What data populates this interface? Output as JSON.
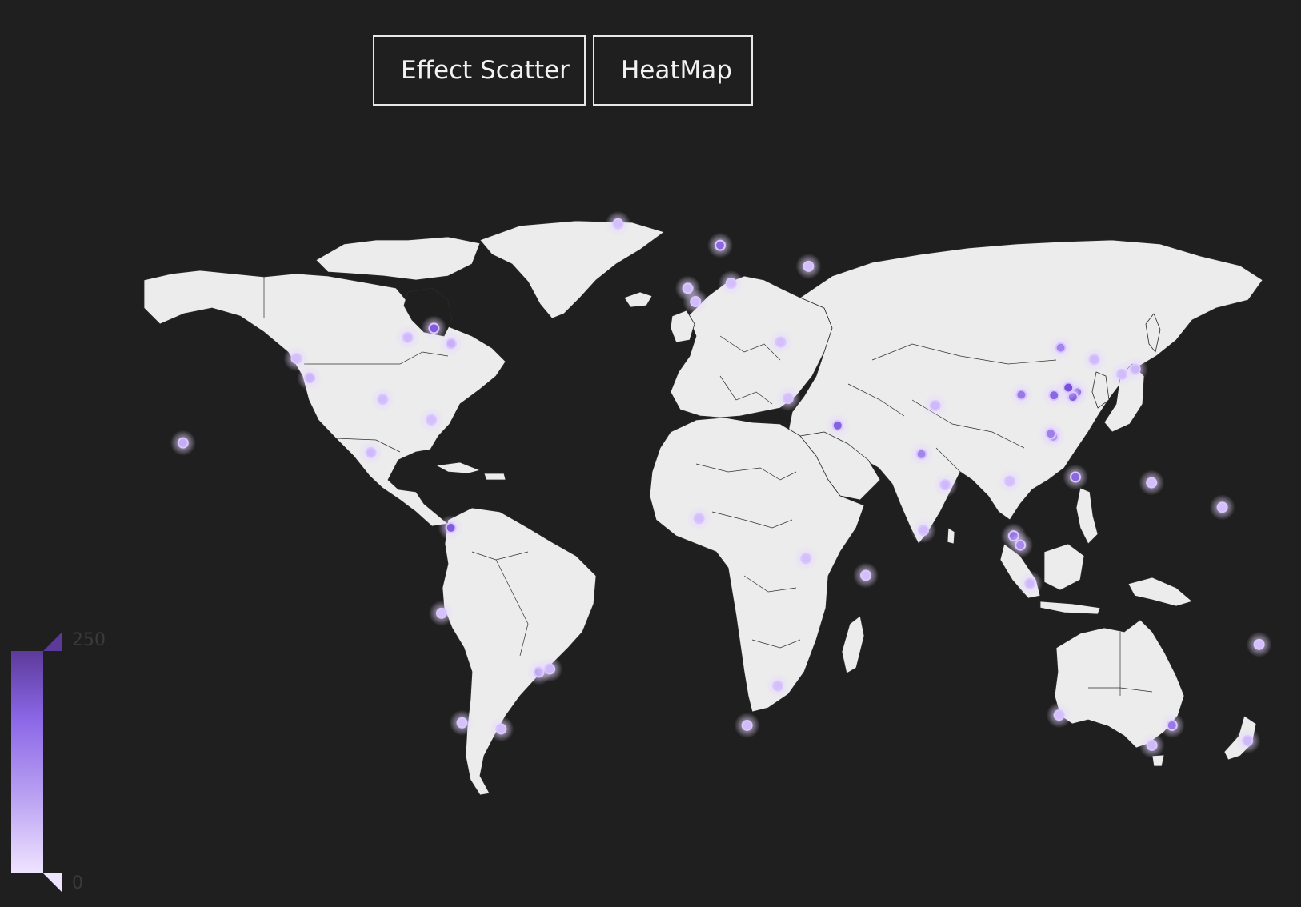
{
  "toolbar": {
    "effect_scatter_label": "Effect Scatter",
    "heatmap_label": "HeatMap"
  },
  "visual_map": {
    "max_label": "250",
    "min_label": "0",
    "min": 0,
    "max": 250,
    "colors": [
      "#efe4ff",
      "#b9a0f2",
      "#8a66e6",
      "#5c3a9a"
    ]
  },
  "map": {
    "land_color": "#ececec",
    "border_color": "#2a2a2a",
    "background": "#1f1f1f",
    "point_color_low": "#e2d0ff",
    "point_color_high": "#6a3fd4"
  },
  "chart_data": {
    "type": "heatmap",
    "title": "",
    "points": [
      {
        "lon": -122.4,
        "lat": 37.8,
        "value": 30
      },
      {
        "lon": -118.2,
        "lat": 34.0,
        "value": 45
      },
      {
        "lon": -87.6,
        "lat": 41.9,
        "value": 40
      },
      {
        "lon": -74.0,
        "lat": 40.7,
        "value": 55
      },
      {
        "lon": -79.4,
        "lat": 43.7,
        "value": 200
      },
      {
        "lon": -95.4,
        "lat": 29.8,
        "value": 35
      },
      {
        "lon": -80.2,
        "lat": 25.8,
        "value": 30
      },
      {
        "lon": -99.1,
        "lat": 19.4,
        "value": 40
      },
      {
        "lon": -157.8,
        "lat": 21.3,
        "value": 60
      },
      {
        "lon": -74.1,
        "lat": 4.7,
        "value": 200
      },
      {
        "lon": -46.6,
        "lat": -23.5,
        "value": 70
      },
      {
        "lon": -43.2,
        "lat": -22.9,
        "value": 40
      },
      {
        "lon": -58.4,
        "lat": -34.6,
        "value": 30
      },
      {
        "lon": -70.6,
        "lat": -33.4,
        "value": 25
      },
      {
        "lon": -77.0,
        "lat": -12.0,
        "value": 25
      },
      {
        "lon": -0.1,
        "lat": 51.5,
        "value": 40
      },
      {
        "lon": 2.3,
        "lat": 48.9,
        "value": 35
      },
      {
        "lon": 13.4,
        "lat": 52.5,
        "value": 30
      },
      {
        "lon": 10.0,
        "lat": 59.9,
        "value": 180
      },
      {
        "lon": 37.6,
        "lat": 55.8,
        "value": 30
      },
      {
        "lon": 28.9,
        "lat": 41.0,
        "value": 30
      },
      {
        "lon": 46.7,
        "lat": 24.7,
        "value": 190
      },
      {
        "lon": 31.2,
        "lat": 30.0,
        "value": 30
      },
      {
        "lon": 77.2,
        "lat": 28.6,
        "value": 40
      },
      {
        "lon": 72.9,
        "lat": 19.1,
        "value": 130
      },
      {
        "lon": 80.3,
        "lat": 13.1,
        "value": 40
      },
      {
        "lon": 116.4,
        "lat": 39.9,
        "value": 130
      },
      {
        "lon": 121.5,
        "lat": 31.2,
        "value": 240
      },
      {
        "lon": 114.1,
        "lat": 22.5,
        "value": 170
      },
      {
        "lon": 113.3,
        "lat": 23.1,
        "value": 140
      },
      {
        "lon": 104.1,
        "lat": 30.7,
        "value": 150
      },
      {
        "lon": 120.2,
        "lat": 30.3,
        "value": 200
      },
      {
        "lon": 118.8,
        "lat": 32.1,
        "value": 220
      },
      {
        "lon": 114.3,
        "lat": 30.6,
        "value": 180
      },
      {
        "lon": 126.9,
        "lat": 37.6,
        "value": 40
      },
      {
        "lon": 139.7,
        "lat": 35.7,
        "value": 45
      },
      {
        "lon": 135.5,
        "lat": 34.7,
        "value": 35
      },
      {
        "lon": 121.0,
        "lat": 14.6,
        "value": 180
      },
      {
        "lon": 101.7,
        "lat": 3.1,
        "value": 160
      },
      {
        "lon": 103.8,
        "lat": 1.3,
        "value": 120
      },
      {
        "lon": 106.8,
        "lat": -6.2,
        "value": 40
      },
      {
        "lon": 100.5,
        "lat": 13.8,
        "value": 30
      },
      {
        "lon": 151.2,
        "lat": -33.9,
        "value": 150
      },
      {
        "lon": 144.9,
        "lat": -37.8,
        "value": 40
      },
      {
        "lon": 115.9,
        "lat": -31.9,
        "value": 30
      },
      {
        "lon": 174.8,
        "lat": -36.9,
        "value": 40
      },
      {
        "lon": 18.4,
        "lat": -33.9,
        "value": 35
      },
      {
        "lon": 28.0,
        "lat": -26.2,
        "value": 30
      },
      {
        "lon": 36.8,
        "lat": -1.3,
        "value": 30
      },
      {
        "lon": 3.4,
        "lat": 6.5,
        "value": 30
      },
      {
        "lon": 55.5,
        "lat": -4.6,
        "value": 30
      },
      {
        "lon": 73.5,
        "lat": 4.2,
        "value": 35
      },
      {
        "lon": 144.8,
        "lat": 13.5,
        "value": 30
      },
      {
        "lon": 166.9,
        "lat": 8.7,
        "value": 30
      },
      {
        "lon": 178.4,
        "lat": -18.1,
        "value": 30
      },
      {
        "lon": -21.9,
        "lat": 64.1,
        "value": 30
      }
    ]
  }
}
